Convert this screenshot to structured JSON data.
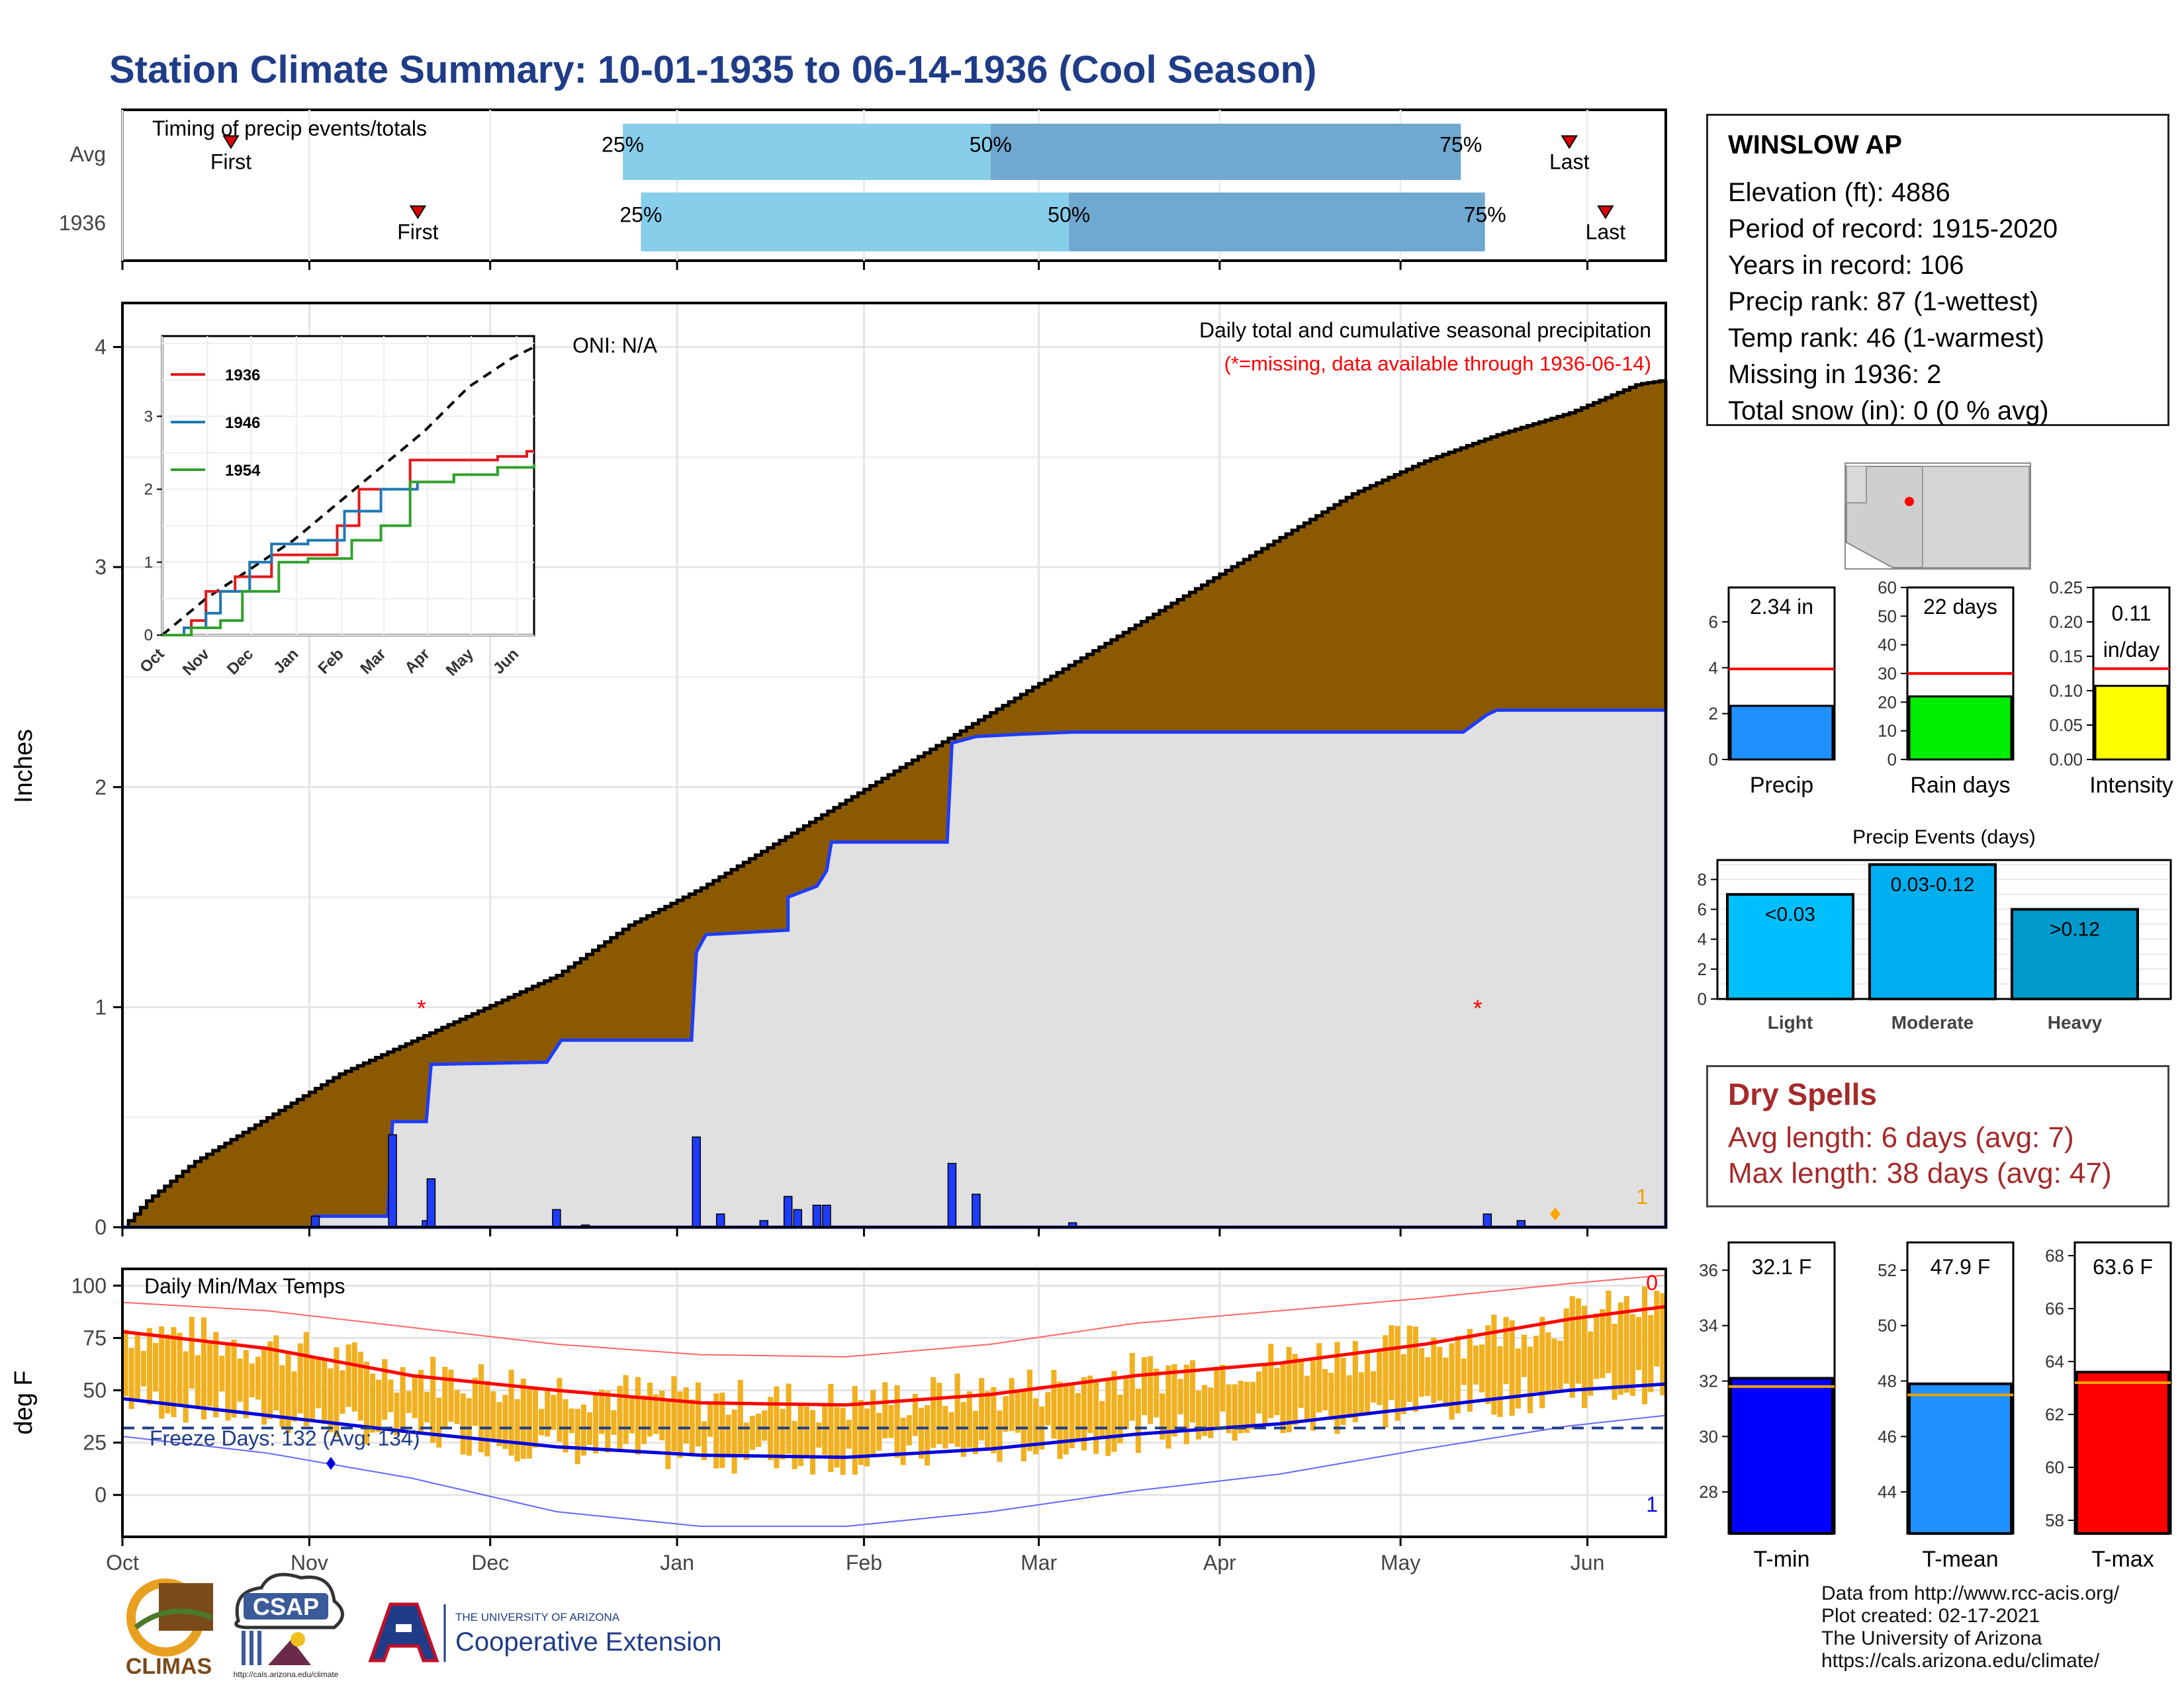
{
  "title": "Station Climate Summary: 10-01-1935 to 06-14-1936 (Cool Season)",
  "station": {
    "name": "WINSLOW AP",
    "lines": [
      "Elevation (ft): 4886",
      "Period of record: 1915-2020",
      "Years in record: 106",
      "Precip rank: 87 (1-wettest)",
      "Temp rank: 46 (1-warmest)",
      "Missing in 1936: 2",
      "Total snow (in): 0 (0 % avg)"
    ]
  },
  "colors": {
    "title": "#1f3c88",
    "cumulative_fill": "#8b5a00",
    "avg_fill": "#e0e0e0",
    "daily_bar": "#1e3cff",
    "temp_range": "#f0b020",
    "tmax_mean": "#ff0000",
    "tmin_mean": "#0000dd",
    "timing_light": "#87ceeb",
    "timing_dark": "#6fa8d0"
  },
  "timing": {
    "label": "Timing of precip events/totals",
    "rows": [
      {
        "name": "Avg",
        "first_day": 18,
        "p25": 83,
        "p50": 144,
        "p75": 222,
        "last_day": 240,
        "first_label": "First",
        "last_label": "Last",
        "p25_label": "25%",
        "p50_label": "50%",
        "p75_label": "75%"
      },
      {
        "name": "1936",
        "first_day": 49,
        "p25": 86,
        "p50": 157,
        "p75": 226,
        "last_day": 246,
        "first_label": "First",
        "last_label": "Last",
        "p25_label": "25%",
        "p50_label": "50%",
        "p75_label": "75%"
      }
    ]
  },
  "precip_panel": {
    "ylabel": "Inches",
    "oni": "ONI: N/A",
    "header": "Daily total and cumulative seasonal precipitation",
    "missing_note": "(*=missing, data available through 1936-06-14)",
    "count_label": "1",
    "yticks": [
      "0",
      "1",
      "2",
      "3",
      "4"
    ]
  },
  "inset": {
    "legend": [
      {
        "name": "1936",
        "color": "#e31a1c"
      },
      {
        "name": "1946",
        "color": "#1f78b4"
      },
      {
        "name": "1954",
        "color": "#33a02c"
      }
    ],
    "yticks": [
      "0",
      "1",
      "2",
      "3"
    ],
    "xticks": [
      "Oct",
      "Nov",
      "Dec",
      "Jan",
      "Feb",
      "Mar",
      "Apr",
      "May",
      "Jun"
    ]
  },
  "temp_panel": {
    "label": "Daily Min/Max Temps",
    "ylabel": "deg F",
    "freeze": "Freeze Days: 132 (Avg: 134)",
    "count_top": "0",
    "count_bottom": "1",
    "yticks": [
      "0",
      "25",
      "50",
      "75",
      "100"
    ]
  },
  "months": [
    "Oct",
    "Nov",
    "Dec",
    "Jan",
    "Feb",
    "Mar",
    "Apr",
    "May",
    "Jun"
  ],
  "small_bars": [
    {
      "label": "Precip",
      "value_text": "2.34 in",
      "value": 2.34,
      "avg": 3.95,
      "ymax": 7.5,
      "yticks": [
        "0",
        "2",
        "4",
        "6"
      ],
      "tickvals": [
        0,
        2,
        4,
        6
      ],
      "color": "#1e90ff"
    },
    {
      "label": "Rain days",
      "value_text": "22 days",
      "value": 22,
      "avg": 30,
      "ymax": 60,
      "yticks": [
        "0",
        "10",
        "20",
        "30",
        "40",
        "50",
        "60"
      ],
      "tickvals": [
        0,
        10,
        20,
        30,
        40,
        50,
        60
      ],
      "color": "#00ee00"
    },
    {
      "label": "Intensity",
      "value_text_1": "0.11",
      "value_text_2": "in/day",
      "value": 0.107,
      "avg": 0.132,
      "ymax": 0.25,
      "yticks": [
        "0.00",
        "0.05",
        "0.10",
        "0.15",
        "0.20",
        "0.25"
      ],
      "tickvals": [
        0,
        0.05,
        0.1,
        0.15,
        0.2,
        0.25
      ],
      "color": "#ffff00"
    }
  ],
  "events": {
    "title": "Precip Events (days)",
    "bars": [
      {
        "label": "Light",
        "value": 7,
        "text": "<0.03",
        "color": "#00bfff"
      },
      {
        "label": "Moderate",
        "value": 9,
        "text": "0.03-0.12",
        "color": "#00afef"
      },
      {
        "label": "Heavy",
        "value": 6,
        "text": ">0.12",
        "color": "#0099cc"
      }
    ],
    "yticks": [
      "0",
      "2",
      "4",
      "6",
      "8"
    ]
  },
  "dry_spells": {
    "title": "Dry Spells",
    "avg": "Avg length: 6 days (avg: 7)",
    "max": "Max length: 38 days (avg: 47)"
  },
  "temp_bars": [
    {
      "label": "T-min",
      "value_text": "32.1 F",
      "value": 32.1,
      "avg": 31.8,
      "ymin": 26.5,
      "ymax": 37,
      "yticks": [
        "28",
        "30",
        "32",
        "34",
        "36"
      ],
      "tickvals": [
        28,
        30,
        32,
        34,
        36
      ],
      "color": "#0000ff"
    },
    {
      "label": "T-mean",
      "value_text": "47.9 F",
      "value": 47.9,
      "avg": 47.5,
      "ymin": 42.5,
      "ymax": 53,
      "yticks": [
        "44",
        "46",
        "48",
        "50",
        "52"
      ],
      "tickvals": [
        44,
        46,
        48,
        50,
        52
      ],
      "color": "#1e90ff"
    },
    {
      "label": "T-max",
      "value_text": "63.6 F",
      "value": 63.6,
      "avg": 63.2,
      "ymin": 57.5,
      "ymax": 68.5,
      "yticks": [
        "58",
        "60",
        "62",
        "64",
        "66",
        "68"
      ],
      "tickvals": [
        58,
        60,
        62,
        64,
        66,
        68
      ],
      "color": "#ff0000"
    }
  ],
  "logos": {
    "climas": "CLIMAS",
    "csap": "CSAP",
    "csap_url": "http://cals.arizona.edu/climate",
    "ua_top": "THE UNIVERSITY OF ARIZONA",
    "ua_bottom": "Cooperative Extension"
  },
  "credits": [
    "Data from http://www.rcc-acis.org/",
    "Plot created: 02-17-2021",
    "The University of Arizona",
    "https://cals.arizona.edu/climate/"
  ],
  "chart_data": {
    "type": "area",
    "title": "Station Climate Summary: 10-01-1935 to 06-14-1936 (Cool Season)",
    "ylabel": "Inches",
    "ylim": [
      0,
      4.2
    ],
    "x_range_days": [
      0,
      256
    ],
    "cumulative_avg": [
      [
        0,
        0
      ],
      [
        5,
        0.12
      ],
      [
        15,
        0.3
      ],
      [
        30,
        0.5
      ],
      [
        45,
        0.7
      ],
      [
        60,
        0.85
      ],
      [
        75,
        1.0
      ],
      [
        90,
        1.15
      ],
      [
        105,
        1.38
      ],
      [
        120,
        1.55
      ],
      [
        135,
        1.75
      ],
      [
        150,
        1.95
      ],
      [
        165,
        2.15
      ],
      [
        180,
        2.35
      ],
      [
        195,
        2.55
      ],
      [
        210,
        2.75
      ],
      [
        225,
        2.95
      ],
      [
        240,
        3.15
      ],
      [
        255,
        3.35
      ],
      [
        270,
        3.5
      ],
      [
        285,
        3.62
      ],
      [
        300,
        3.72
      ],
      [
        314,
        3.85
      ],
      [
        320,
        3.87
      ]
    ],
    "cumulative_1936": [
      [
        0,
        0
      ],
      [
        40,
        0
      ],
      [
        40,
        0.05
      ],
      [
        55,
        0.05
      ],
      [
        55,
        0.05
      ],
      [
        56,
        0.48
      ],
      [
        63,
        0.48
      ],
      [
        63,
        0.48
      ],
      [
        64,
        0.74
      ],
      [
        88,
        0.75
      ],
      [
        91,
        0.85
      ],
      [
        111,
        0.85
      ],
      [
        118,
        0.85
      ],
      [
        119,
        1.25
      ],
      [
        121,
        1.33
      ],
      [
        138,
        1.35
      ],
      [
        138,
        1.5
      ],
      [
        144,
        1.55
      ],
      [
        146,
        1.62
      ],
      [
        147,
        1.75
      ],
      [
        171,
        1.75
      ],
      [
        172,
        2.2
      ],
      [
        177,
        2.23
      ],
      [
        186,
        2.24
      ],
      [
        197,
        2.25
      ],
      [
        278,
        2.25
      ],
      [
        283,
        2.33
      ],
      [
        285,
        2.35
      ],
      [
        320,
        2.35
      ]
    ],
    "daily_1936": [
      [
        40,
        0.05
      ],
      [
        56,
        0.42
      ],
      [
        63,
        0.03
      ],
      [
        64,
        0.22
      ],
      [
        90,
        0.08
      ],
      [
        96,
        0.01
      ],
      [
        119,
        0.41
      ],
      [
        124,
        0.06
      ],
      [
        133,
        0.03
      ],
      [
        138,
        0.14
      ],
      [
        140,
        0.08
      ],
      [
        144,
        0.1
      ],
      [
        146,
        0.1
      ],
      [
        172,
        0.29
      ],
      [
        177,
        0.15
      ],
      [
        197,
        0.02
      ],
      [
        283,
        0.06
      ],
      [
        290,
        0.03
      ]
    ],
    "missing_days": [
      [
        62,
        1.0
      ],
      [
        281,
        1.0
      ]
    ],
    "inset_series": [
      {
        "name": "1936",
        "points": [
          [
            0,
            0
          ],
          [
            20,
            0.2
          ],
          [
            30,
            0.6
          ],
          [
            50,
            0.8
          ],
          [
            75,
            1.1
          ],
          [
            90,
            1.1
          ],
          [
            120,
            1.5
          ],
          [
            135,
            2.0
          ],
          [
            170,
            2.4
          ],
          [
            185,
            2.4
          ],
          [
            230,
            2.45
          ],
          [
            250,
            2.52
          ],
          [
            255,
            2.52
          ]
        ]
      },
      {
        "name": "1946",
        "points": [
          [
            0,
            0
          ],
          [
            15,
            0.1
          ],
          [
            30,
            0.3
          ],
          [
            40,
            0.6
          ],
          [
            60,
            1.0
          ],
          [
            75,
            1.25
          ],
          [
            100,
            1.3
          ],
          [
            125,
            1.7
          ],
          [
            150,
            2.0
          ],
          [
            175,
            2.1
          ],
          [
            200,
            2.2
          ],
          [
            230,
            2.3
          ],
          [
            255,
            2.33
          ]
        ]
      },
      {
        "name": "1954",
        "points": [
          [
            0,
            0
          ],
          [
            20,
            0.1
          ],
          [
            40,
            0.2
          ],
          [
            55,
            0.6
          ],
          [
            80,
            1.0
          ],
          [
            100,
            1.05
          ],
          [
            130,
            1.3
          ],
          [
            150,
            1.5
          ],
          [
            170,
            2.1
          ],
          [
            200,
            2.2
          ],
          [
            230,
            2.3
          ],
          [
            255,
            2.35
          ]
        ]
      }
    ],
    "inset_avg": [
      [
        0,
        0
      ],
      [
        30,
        0.5
      ],
      [
        60,
        0.9
      ],
      [
        90,
        1.3
      ],
      [
        120,
        1.8
      ],
      [
        150,
        2.3
      ],
      [
        180,
        2.8
      ],
      [
        210,
        3.4
      ],
      [
        240,
        3.8
      ],
      [
        255,
        3.95
      ]
    ],
    "temperature": {
      "ylim": [
        -20,
        108
      ],
      "freeze_line": 32,
      "tmax_mean": [
        [
          0,
          78
        ],
        [
          30,
          70
        ],
        [
          60,
          57
        ],
        [
          90,
          50
        ],
        [
          120,
          44
        ],
        [
          150,
          43
        ],
        [
          180,
          48
        ],
        [
          210,
          57
        ],
        [
          240,
          63
        ],
        [
          270,
          72
        ],
        [
          300,
          84
        ],
        [
          320,
          90
        ]
      ],
      "tmin_mean": [
        [
          0,
          46
        ],
        [
          30,
          38
        ],
        [
          60,
          30
        ],
        [
          90,
          23
        ],
        [
          120,
          19
        ],
        [
          150,
          18
        ],
        [
          180,
          22
        ],
        [
          210,
          29
        ],
        [
          240,
          34
        ],
        [
          270,
          42
        ],
        [
          300,
          50
        ],
        [
          320,
          53
        ]
      ],
      "tmax_record": [
        [
          0,
          92
        ],
        [
          30,
          88
        ],
        [
          60,
          80
        ],
        [
          90,
          72
        ],
        [
          120,
          67
        ],
        [
          150,
          66
        ],
        [
          180,
          72
        ],
        [
          210,
          82
        ],
        [
          240,
          88
        ],
        [
          270,
          94
        ],
        [
          300,
          101
        ],
        [
          320,
          105
        ]
      ],
      "tmin_record": [
        [
          0,
          28
        ],
        [
          30,
          20
        ],
        [
          60,
          8
        ],
        [
          90,
          -8
        ],
        [
          120,
          -15
        ],
        [
          150,
          -15
        ],
        [
          180,
          -8
        ],
        [
          210,
          2
        ],
        [
          240,
          10
        ],
        [
          270,
          22
        ],
        [
          300,
          33
        ],
        [
          320,
          38
        ]
      ]
    }
  }
}
